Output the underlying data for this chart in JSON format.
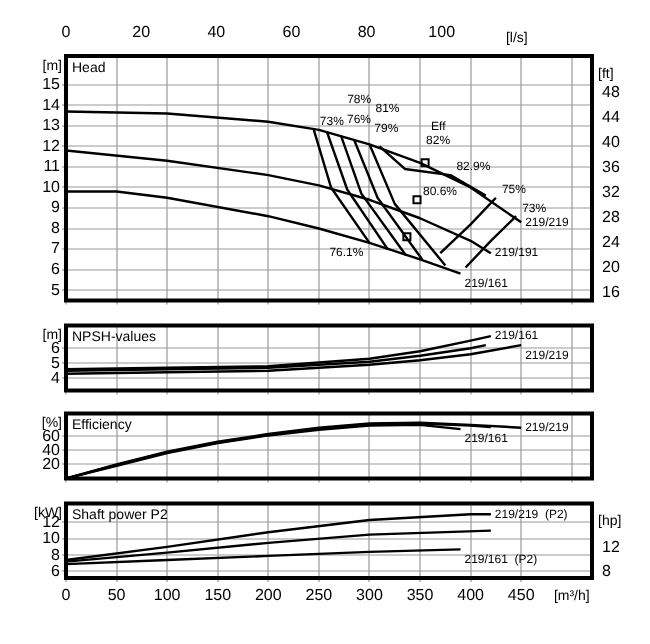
{
  "chart_data": [
    {
      "type": "line",
      "title": "Head",
      "ylabel": "[m]",
      "y2label": "[ft]",
      "x2label": "[l/s]",
      "xlim": [
        0,
        520
      ],
      "xticks": [
        0,
        50,
        100,
        150,
        200,
        250,
        300,
        350,
        400,
        450,
        500
      ],
      "x2lim": [
        0,
        140
      ],
      "x2ticks": [
        0,
        20,
        40,
        60,
        80,
        100
      ],
      "ylim": [
        4.5,
        16.4
      ],
      "yticks": [
        5,
        6,
        7,
        8,
        9,
        10,
        11,
        12,
        13,
        14,
        15
      ],
      "y2lim": [
        14.8,
        53.8
      ],
      "y2ticks": [
        16,
        20,
        24,
        28,
        32,
        36,
        40,
        44,
        48
      ],
      "grid": true,
      "tick_labels": "y",
      "series": [
        {
          "name": "219/219",
          "color": "#000000",
          "x": [
            0,
            100,
            200,
            250,
            300,
            350,
            400,
            450
          ],
          "values": [
            13.7,
            13.6,
            13.2,
            12.8,
            12.1,
            11.2,
            10.0,
            8.3
          ]
        },
        {
          "name": "219/191",
          "color": "#000000",
          "x": [
            0,
            100,
            200,
            250,
            300,
            350,
            400,
            420
          ],
          "values": [
            11.8,
            11.3,
            10.6,
            10.1,
            9.4,
            8.5,
            7.4,
            6.8
          ]
        },
        {
          "name": "219/161",
          "color": "#000000",
          "x": [
            0,
            50,
            100,
            200,
            250,
            300,
            350,
            390
          ],
          "values": [
            9.8,
            9.8,
            9.5,
            8.6,
            8.0,
            7.3,
            6.5,
            5.8
          ]
        },
        {
          "type": "line",
          "color": "#000000",
          "x": [
            245,
            262,
            300
          ],
          "values": [
            12.8,
            10.0,
            7.3
          ]
        },
        {
          "type": "line",
          "color": "#000000",
          "x": [
            258,
            278,
            318
          ],
          "values": [
            12.7,
            9.9,
            7.0
          ]
        },
        {
          "type": "line",
          "color": "#000000",
          "x": [
            272,
            292,
            336
          ],
          "values": [
            12.5,
            9.7,
            6.7
          ]
        },
        {
          "type": "line",
          "color": "#000000",
          "x": [
            285,
            308,
            352
          ],
          "values": [
            12.3,
            9.5,
            6.5
          ]
        },
        {
          "type": "line",
          "color": "#000000",
          "x": [
            300,
            325,
            375
          ],
          "values": [
            12.1,
            9.2,
            6.2
          ]
        },
        {
          "type": "line",
          "color": "#000000",
          "x": [
            310,
            335,
            380,
            415
          ],
          "values": [
            12.0,
            10.9,
            10.6,
            9.6
          ]
        },
        {
          "type": "line",
          "color": "#000000",
          "x": [
            445,
            420,
            395
          ],
          "values": [
            8.6,
            7.4,
            6.1
          ]
        },
        {
          "type": "line",
          "color": "#000000",
          "x": [
            425,
            400,
            370
          ],
          "values": [
            9.5,
            8.2,
            6.8
          ]
        },
        {
          "type": "scatter",
          "marker": "square",
          "color": "#000000",
          "x": [
            355,
            347,
            337
          ],
          "values": [
            11.2,
            9.4,
            7.6
          ]
        }
      ],
      "annotations": [
        {
          "text": "73%",
          "x": 245,
          "y": 12.8
        },
        {
          "text": "76%",
          "x": 258,
          "y": 12.7
        },
        {
          "text": "78%",
          "x": 272,
          "y": 12.5
        },
        {
          "text": "79%",
          "x": 285,
          "y": 12.3
        },
        {
          "text": "81%",
          "x": 300,
          "y": 12.1
        },
        {
          "text": "82%",
          "x": 350,
          "y": 11.2
        },
        {
          "text": "Eff",
          "x": 355,
          "y": 11.2
        },
        {
          "text": "82.9%",
          "x": 380,
          "y": 10.6
        },
        {
          "text": "80.6%",
          "x": 347,
          "y": 9.4
        },
        {
          "text": "76.1%",
          "x": 300,
          "y": 7.3
        },
        {
          "text": "75%",
          "x": 425,
          "y": 9.5
        },
        {
          "text": "73%",
          "x": 445,
          "y": 8.6
        }
      ]
    },
    {
      "type": "line",
      "title": "NPSH-values",
      "ylabel": "[m]",
      "xlim": [
        0,
        520
      ],
      "xticks": [
        0,
        50,
        100,
        150,
        200,
        250,
        300,
        350,
        400,
        450,
        500
      ],
      "ylim": [
        3.2,
        7.5
      ],
      "yticks": [
        4,
        5,
        6
      ],
      "grid": true,
      "tick_labels": "y",
      "series": [
        {
          "name": "219/161",
          "color": "#000000",
          "x": [
            0,
            100,
            200,
            300,
            350,
            400,
            420
          ],
          "values": [
            4.6,
            4.7,
            4.8,
            5.3,
            5.8,
            6.5,
            6.8
          ]
        },
        {
          "color": "#000000",
          "x": [
            0,
            100,
            200,
            300,
            350,
            400,
            415
          ],
          "values": [
            4.5,
            4.6,
            4.7,
            5.1,
            5.5,
            6.0,
            6.2
          ]
        },
        {
          "name": "219/219",
          "color": "#000000",
          "x": [
            0,
            100,
            200,
            300,
            350,
            400,
            450
          ],
          "values": [
            4.3,
            4.4,
            4.5,
            4.9,
            5.2,
            5.6,
            6.2
          ]
        }
      ]
    },
    {
      "type": "line",
      "title": "Efficiency",
      "ylabel": "[%]",
      "xlim": [
        0,
        520
      ],
      "xticks": [
        0,
        50,
        100,
        150,
        200,
        250,
        300,
        350,
        400,
        450,
        500
      ],
      "ylim": [
        0,
        92
      ],
      "yticks": [
        20,
        40,
        60
      ],
      "grid": true,
      "tick_labels": "y",
      "series": [
        {
          "name": "219/219",
          "color": "#000000",
          "x": [
            0,
            50,
            100,
            150,
            200,
            250,
            300,
            350,
            400,
            450
          ],
          "values": [
            0,
            20,
            38,
            52,
            63,
            72,
            78,
            79,
            76,
            72
          ]
        },
        {
          "color": "#000000",
          "x": [
            0,
            50,
            100,
            150,
            200,
            250,
            300,
            350,
            400,
            420
          ],
          "values": [
            0,
            19,
            37,
            51,
            62,
            71,
            77,
            78,
            75,
            73
          ]
        },
        {
          "name": "219/161",
          "color": "#000000",
          "x": [
            0,
            50,
            100,
            150,
            200,
            250,
            300,
            350,
            390
          ],
          "values": [
            0,
            18,
            36,
            50,
            61,
            69,
            75,
            76,
            70
          ]
        }
      ]
    },
    {
      "type": "line",
      "title": "Shaft power P2",
      "ylabel": "[kW]",
      "y2label": "[hp]",
      "xlabel": "[m³/h]",
      "xlim": [
        0,
        520
      ],
      "xticks": [
        0,
        50,
        100,
        150,
        200,
        250,
        300,
        350,
        400,
        450
      ],
      "ylim": [
        5.2,
        14.3
      ],
      "yticks": [
        6,
        8,
        10,
        12
      ],
      "y2lim": [
        6.97,
        19.18
      ],
      "y2ticks": [
        8,
        12
      ],
      "grid": true,
      "series": [
        {
          "name": "219/219  (P2)",
          "color": "#000000",
          "x": [
            0,
            100,
            200,
            300,
            400,
            420
          ],
          "values": [
            7.4,
            9.0,
            10.8,
            12.3,
            13.0,
            13.0
          ]
        },
        {
          "color": "#000000",
          "x": [
            0,
            100,
            200,
            300,
            420
          ],
          "values": [
            7.2,
            8.3,
            9.5,
            10.5,
            11.0
          ]
        },
        {
          "name": "219/161  (P2)",
          "color": "#000000",
          "x": [
            0,
            100,
            200,
            300,
            390
          ],
          "values": [
            6.9,
            7.4,
            7.9,
            8.4,
            8.7
          ]
        }
      ]
    }
  ]
}
